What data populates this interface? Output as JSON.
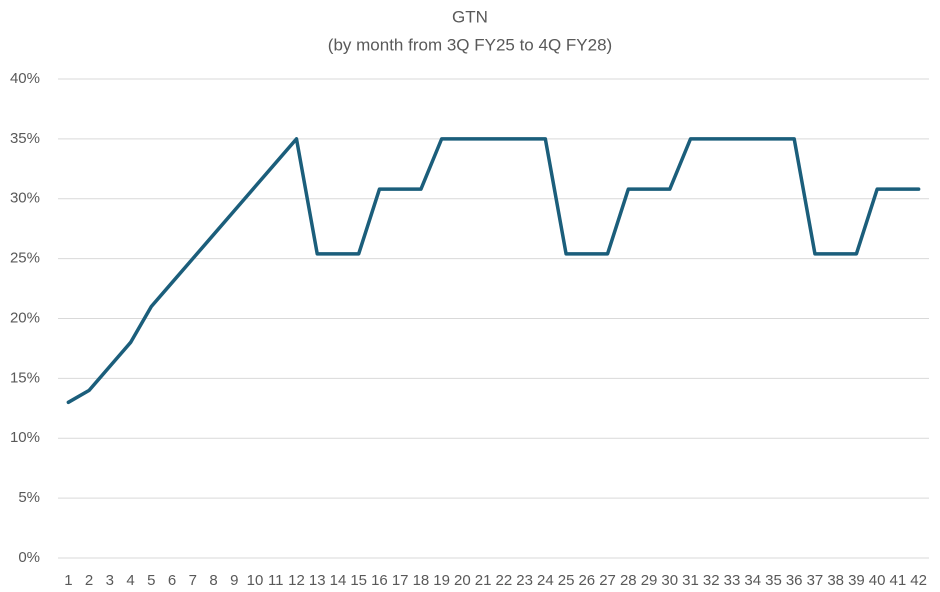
{
  "chart_data": {
    "type": "line",
    "title": "GTN",
    "subtitle": "(by month from 3Q FY25 to 4Q FY28)",
    "categories": [
      "1",
      "2",
      "3",
      "4",
      "5",
      "6",
      "7",
      "8",
      "9",
      "10",
      "11",
      "12",
      "13",
      "14",
      "15",
      "16",
      "17",
      "18",
      "19",
      "20",
      "21",
      "22",
      "23",
      "24",
      "25",
      "26",
      "27",
      "28",
      "29",
      "30",
      "31",
      "32",
      "33",
      "34",
      "35",
      "36",
      "37",
      "38",
      "39",
      "40",
      "41",
      "42"
    ],
    "values": [
      13,
      14,
      16,
      18,
      21,
      23,
      25,
      27,
      29,
      31,
      33,
      35,
      25.4,
      25.4,
      25.4,
      30.8,
      30.8,
      30.8,
      35,
      35,
      35,
      35,
      35,
      35,
      25.4,
      25.4,
      25.4,
      30.8,
      30.8,
      30.8,
      35,
      35,
      35,
      35,
      35,
      35,
      25.4,
      25.4,
      25.4,
      30.8,
      30.8,
      30.8
    ],
    "color": "#1b5e7b",
    "ylim": [
      0,
      40
    ],
    "yticks": [
      {
        "value": 0,
        "label": "0%"
      },
      {
        "value": 5,
        "label": "5%"
      },
      {
        "value": 10,
        "label": "10%"
      },
      {
        "value": 15,
        "label": "15%"
      },
      {
        "value": 20,
        "label": "20%"
      },
      {
        "value": 25,
        "label": "25%"
      },
      {
        "value": 30,
        "label": "30%"
      },
      {
        "value": 35,
        "label": "35%"
      },
      {
        "value": 40,
        "label": "40%"
      }
    ],
    "grid": true
  }
}
